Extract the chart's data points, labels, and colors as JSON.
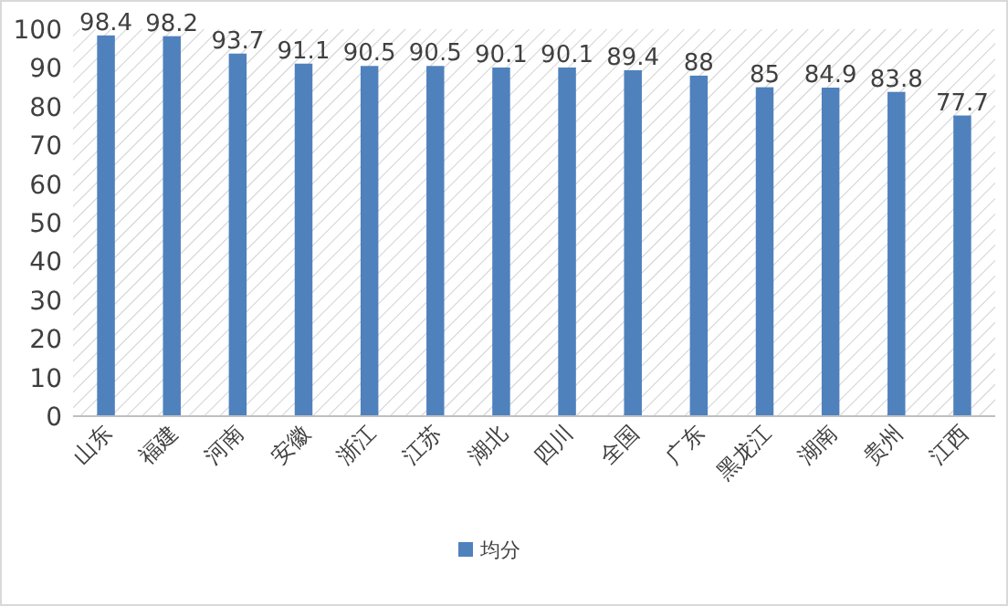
{
  "chart_data": {
    "type": "bar",
    "categories": [
      "山东",
      "福建",
      "河南",
      "安徽",
      "浙江",
      "江苏",
      "湖北",
      "四川",
      "全国",
      "广东",
      "黑龙江",
      "湖南",
      "贵州",
      "江西"
    ],
    "series": [
      {
        "name": "均分",
        "color": "#4f81bd",
        "values": [
          98.4,
          98.2,
          93.7,
          91.1,
          90.5,
          90.5,
          90.1,
          90.1,
          89.4,
          88,
          85,
          84.9,
          83.8,
          77.7
        ]
      }
    ],
    "ylim": [
      0,
      100
    ],
    "yticks": [
      0,
      10,
      20,
      30,
      40,
      50,
      60,
      70,
      80,
      90,
      100
    ],
    "data_labels": true,
    "legend": "bottom"
  }
}
